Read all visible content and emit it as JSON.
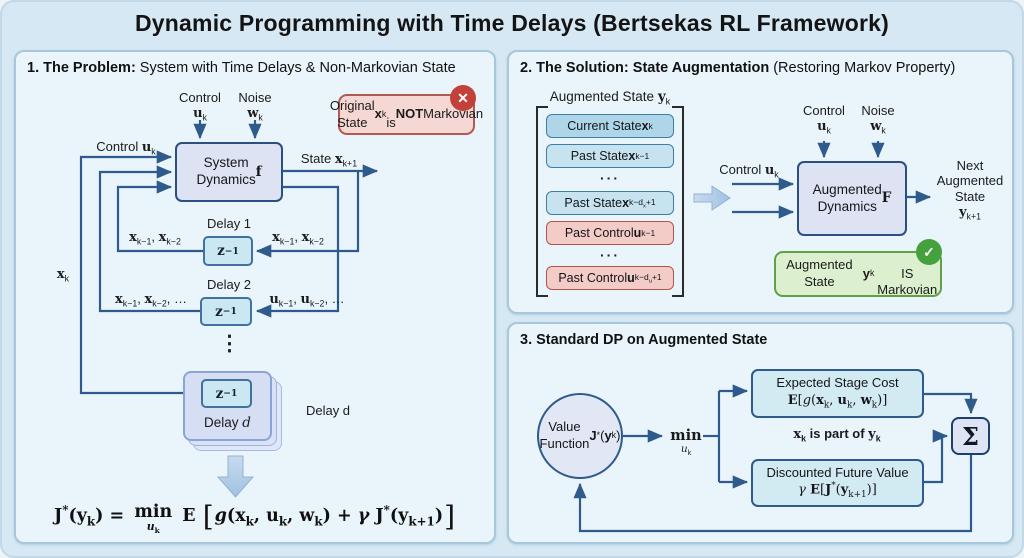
{
  "title": "Dynamic Programming with Time Delays (Bertsekas RL Framework)",
  "colors": {
    "line": "#2e5a8c",
    "panel_bg": "#eaf5fb",
    "error_red": "#c2413a",
    "success_green": "#44a13e",
    "box_lavender": "#dde3f3",
    "box_cyan": "#cbe8f2"
  },
  "panel1": {
    "heading_bold": "1. The Problem:",
    "heading_rest": " System with Time Delays & Non-Markovian State",
    "control_top": "Control<br><b>u</b><sub>k</sub>",
    "noise_top": "Noise<br><b>w</b><sub>k</sub>",
    "control_left": "Control <b>u</b><sub>k</sub>",
    "state_out": "State <b>x</b><sub>k+1</sub>",
    "error_badge": "Original State <b>x</b><sub>k</sub><br>is <b>NOT</b> Markovian",
    "error_icon_glyph": "✕",
    "system_box": "System<br>Dynamics<br><b class='mvar'>f</b>",
    "z_unit": "z<sup>−1</sup>",
    "delay1_label": "Delay 1",
    "delay1_left": "<b>x</b><sub>k−1</sub>, <b>x</b><sub>k−2</sub>",
    "delay1_right": "<b>x</b><sub>k−1</sub>, <b>x</b><sub>k−2</sub>",
    "delay2_label": "Delay 2",
    "delay2_left": "<b>x</b><sub>k−1</sub>, <b>x</b><sub>k−2</sub>, …",
    "delay2_right": "<b>u</b><sub>k−1</sub>, <b>u</b><sub>k−2</sub>, …",
    "xk_label": "<b>x</b><sub>k</sub>",
    "vdots": "⋮",
    "delayd_inner": "Delay <i>d</i>",
    "delayd_outer": "Delay d",
    "formula": "<b>J</b><sup>*</sup>(<b>y</b><sub>k</sub>) = <span class='minstack'><span>min</span><span class='mb'><i>u</i><sub>k</sub></span></span> <span class='dbl'>E</span> <span class='bbr'>[</span><i>g</i>(<b>x</b><sub>k</sub>, <b>u</b><sub>k</sub>, <b>w</b><sub>k</sub>) + <i>γ</i> <b>J</b><sup>*</sup>(<b>y</b><sub>k+1</sub>)<span class='bbr'>]</span>"
  },
  "panel2": {
    "heading_bold": "2. The Solution: State Augmentation",
    "heading_rest": " (Restoring Markov Property)",
    "aug_state_title": "Augmented State <b>y</b><sub>k</sub>",
    "items": [
      "Current State <b>x</b><sub>k</sub>",
      "Past State <b>x</b><sub>k−1</sub>",
      "···",
      "Past State <b>x</b><sub>k−d<sub>x</sub>+1</sub>",
      "Past Control <b>u</b><sub>k−1</sub>",
      "···",
      "Past Control <b>u</b><sub>k−d<sub>u</sub>+1</sub>"
    ],
    "control_top": "Control<br><b>u</b><sub>k</sub>",
    "noise_top": "Noise<br><b>w</b><sub>k</sub>",
    "control_left": "Control <b>u</b><sub>k</sub>",
    "aug_box": "Augmented<br>Dynamics<br><b class='mvar'>F</b>",
    "next_state": "Next<br>Augmented<br>State<br><b>y</b><sub>k+1</sub>",
    "ok_badge": "Augmented State <b>y</b><sub>k</sub><br>IS Markovian",
    "ok_icon_glyph": "✓"
  },
  "panel3": {
    "heading_bold": "3. Standard DP on Augmented State",
    "circle": "Value<br>Function<br><b>J</b><sup>*</sup>(<b>y</b><sub>k</sub>)",
    "min_op": "min",
    "min_sub": "<i>u</i><sub>k</sub>",
    "box1_line1": "Expected Stage Cost",
    "box1_line2": "<span class='dbl'>E</span>[<i>g</i>(<b>x</b><sub>k</sub>, <b>u</b><sub>k</sub>, <b>w</b><sub>k</sub>)]",
    "note": "<b>x</b><sub>k</sub> is part of <b>y</b><sub>k</sub>",
    "box2_line1": "Discounted Future Value",
    "box2_line2": "<i>γ</i> <span class='dbl'>E</span>[<b>J</b><sup>*</sup>(<b>y</b><sub>k+1</sub>)]",
    "sigma": "Σ"
  }
}
